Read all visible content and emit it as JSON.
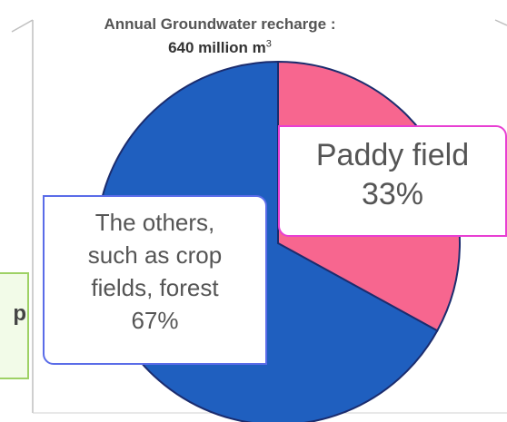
{
  "chart_data": {
    "type": "pie",
    "title_line1": "Annual Groundwater recharge :",
    "title_line2": "640 million m",
    "title_superscript": "3",
    "slices": [
      {
        "label_lines": [
          "Paddy field",
          "33%"
        ],
        "value": 33,
        "color": "#f7668f"
      },
      {
        "label_lines": [
          "The others,",
          "such as crop",
          "fields, forest",
          "67%"
        ],
        "value": 67,
        "color": "#1f5fbf"
      }
    ]
  },
  "side_box": {
    "text": "p"
  },
  "colors": {
    "paddy_border": "#e83fd3",
    "others_border": "#5a6ce8",
    "slice_stroke": "#1b2c6e",
    "green_border": "#9ed165"
  }
}
